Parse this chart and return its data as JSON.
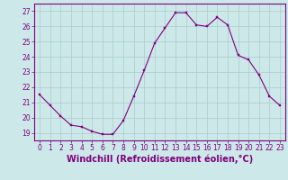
{
  "x": [
    0,
    1,
    2,
    3,
    4,
    5,
    6,
    7,
    8,
    9,
    10,
    11,
    12,
    13,
    14,
    15,
    16,
    17,
    18,
    19,
    20,
    21,
    22,
    23
  ],
  "y": [
    21.5,
    20.8,
    20.1,
    19.5,
    19.4,
    19.1,
    18.9,
    18.9,
    19.8,
    21.4,
    23.1,
    24.9,
    25.9,
    26.9,
    26.9,
    26.1,
    26.0,
    26.6,
    26.1,
    24.1,
    23.8,
    22.8,
    21.4,
    20.8
  ],
  "line_color": "#800080",
  "marker": "s",
  "marker_size": 2,
  "line_width": 0.8,
  "bg_color": "#cce8e8",
  "grid_color": "#aacccc",
  "xlabel": "Windchill (Refroidissement éolien,°C)",
  "xlabel_color": "#800080",
  "xlabel_fontsize": 7,
  "yticks": [
    19,
    20,
    21,
    22,
    23,
    24,
    25,
    26,
    27
  ],
  "ylim": [
    18.5,
    27.5
  ],
  "xlim": [
    -0.5,
    23.5
  ],
  "xticks": [
    0,
    1,
    2,
    3,
    4,
    5,
    6,
    7,
    8,
    9,
    10,
    11,
    12,
    13,
    14,
    15,
    16,
    17,
    18,
    19,
    20,
    21,
    22,
    23
  ],
  "tick_color": "#800080",
  "tick_fontsize": 5.5,
  "spine_color": "#800080",
  "ylabel_fontsize": 6
}
